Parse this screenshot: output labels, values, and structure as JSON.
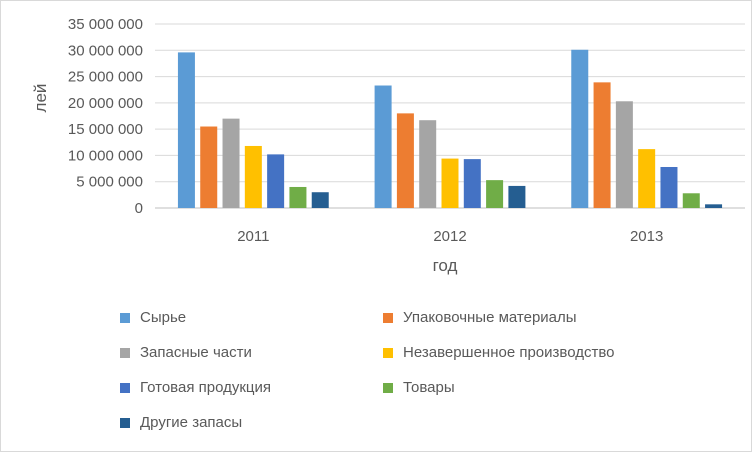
{
  "chart_data": {
    "type": "bar",
    "title": "",
    "xlabel": "год",
    "ylabel": "лей",
    "categories": [
      "2011",
      "2012",
      "2013"
    ],
    "ylim": [
      0,
      35000000
    ],
    "yticks": [
      0,
      5000000,
      10000000,
      15000000,
      20000000,
      25000000,
      30000000,
      35000000
    ],
    "ytick_labels": [
      "0",
      "5 000 000",
      "10 000 000",
      "15 000 000",
      "20 000 000",
      "25 000 000",
      "30 000 000",
      "35 000 000"
    ],
    "grid": true,
    "legend_position": "bottom",
    "series": [
      {
        "name": "Сырье",
        "color": "#5b9bd5",
        "values": [
          29600000,
          23300000,
          30100000
        ]
      },
      {
        "name": "Упаковочные материалы",
        "color": "#ed7d31",
        "values": [
          15500000,
          18000000,
          23900000
        ]
      },
      {
        "name": "Запасные части",
        "color": "#a5a5a5",
        "values": [
          17000000,
          16700000,
          20300000
        ]
      },
      {
        "name": "Незавершенное производство",
        "color": "#ffc000",
        "values": [
          11800000,
          9400000,
          11200000
        ]
      },
      {
        "name": "Готовая продукция",
        "color": "#4472c4",
        "values": [
          10200000,
          9300000,
          7800000
        ]
      },
      {
        "name": "Товары",
        "color": "#70ad47",
        "values": [
          4000000,
          5300000,
          2800000
        ]
      },
      {
        "name": "Другие запасы",
        "color": "#255e91",
        "values": [
          3000000,
          4200000,
          700000
        ]
      }
    ]
  }
}
